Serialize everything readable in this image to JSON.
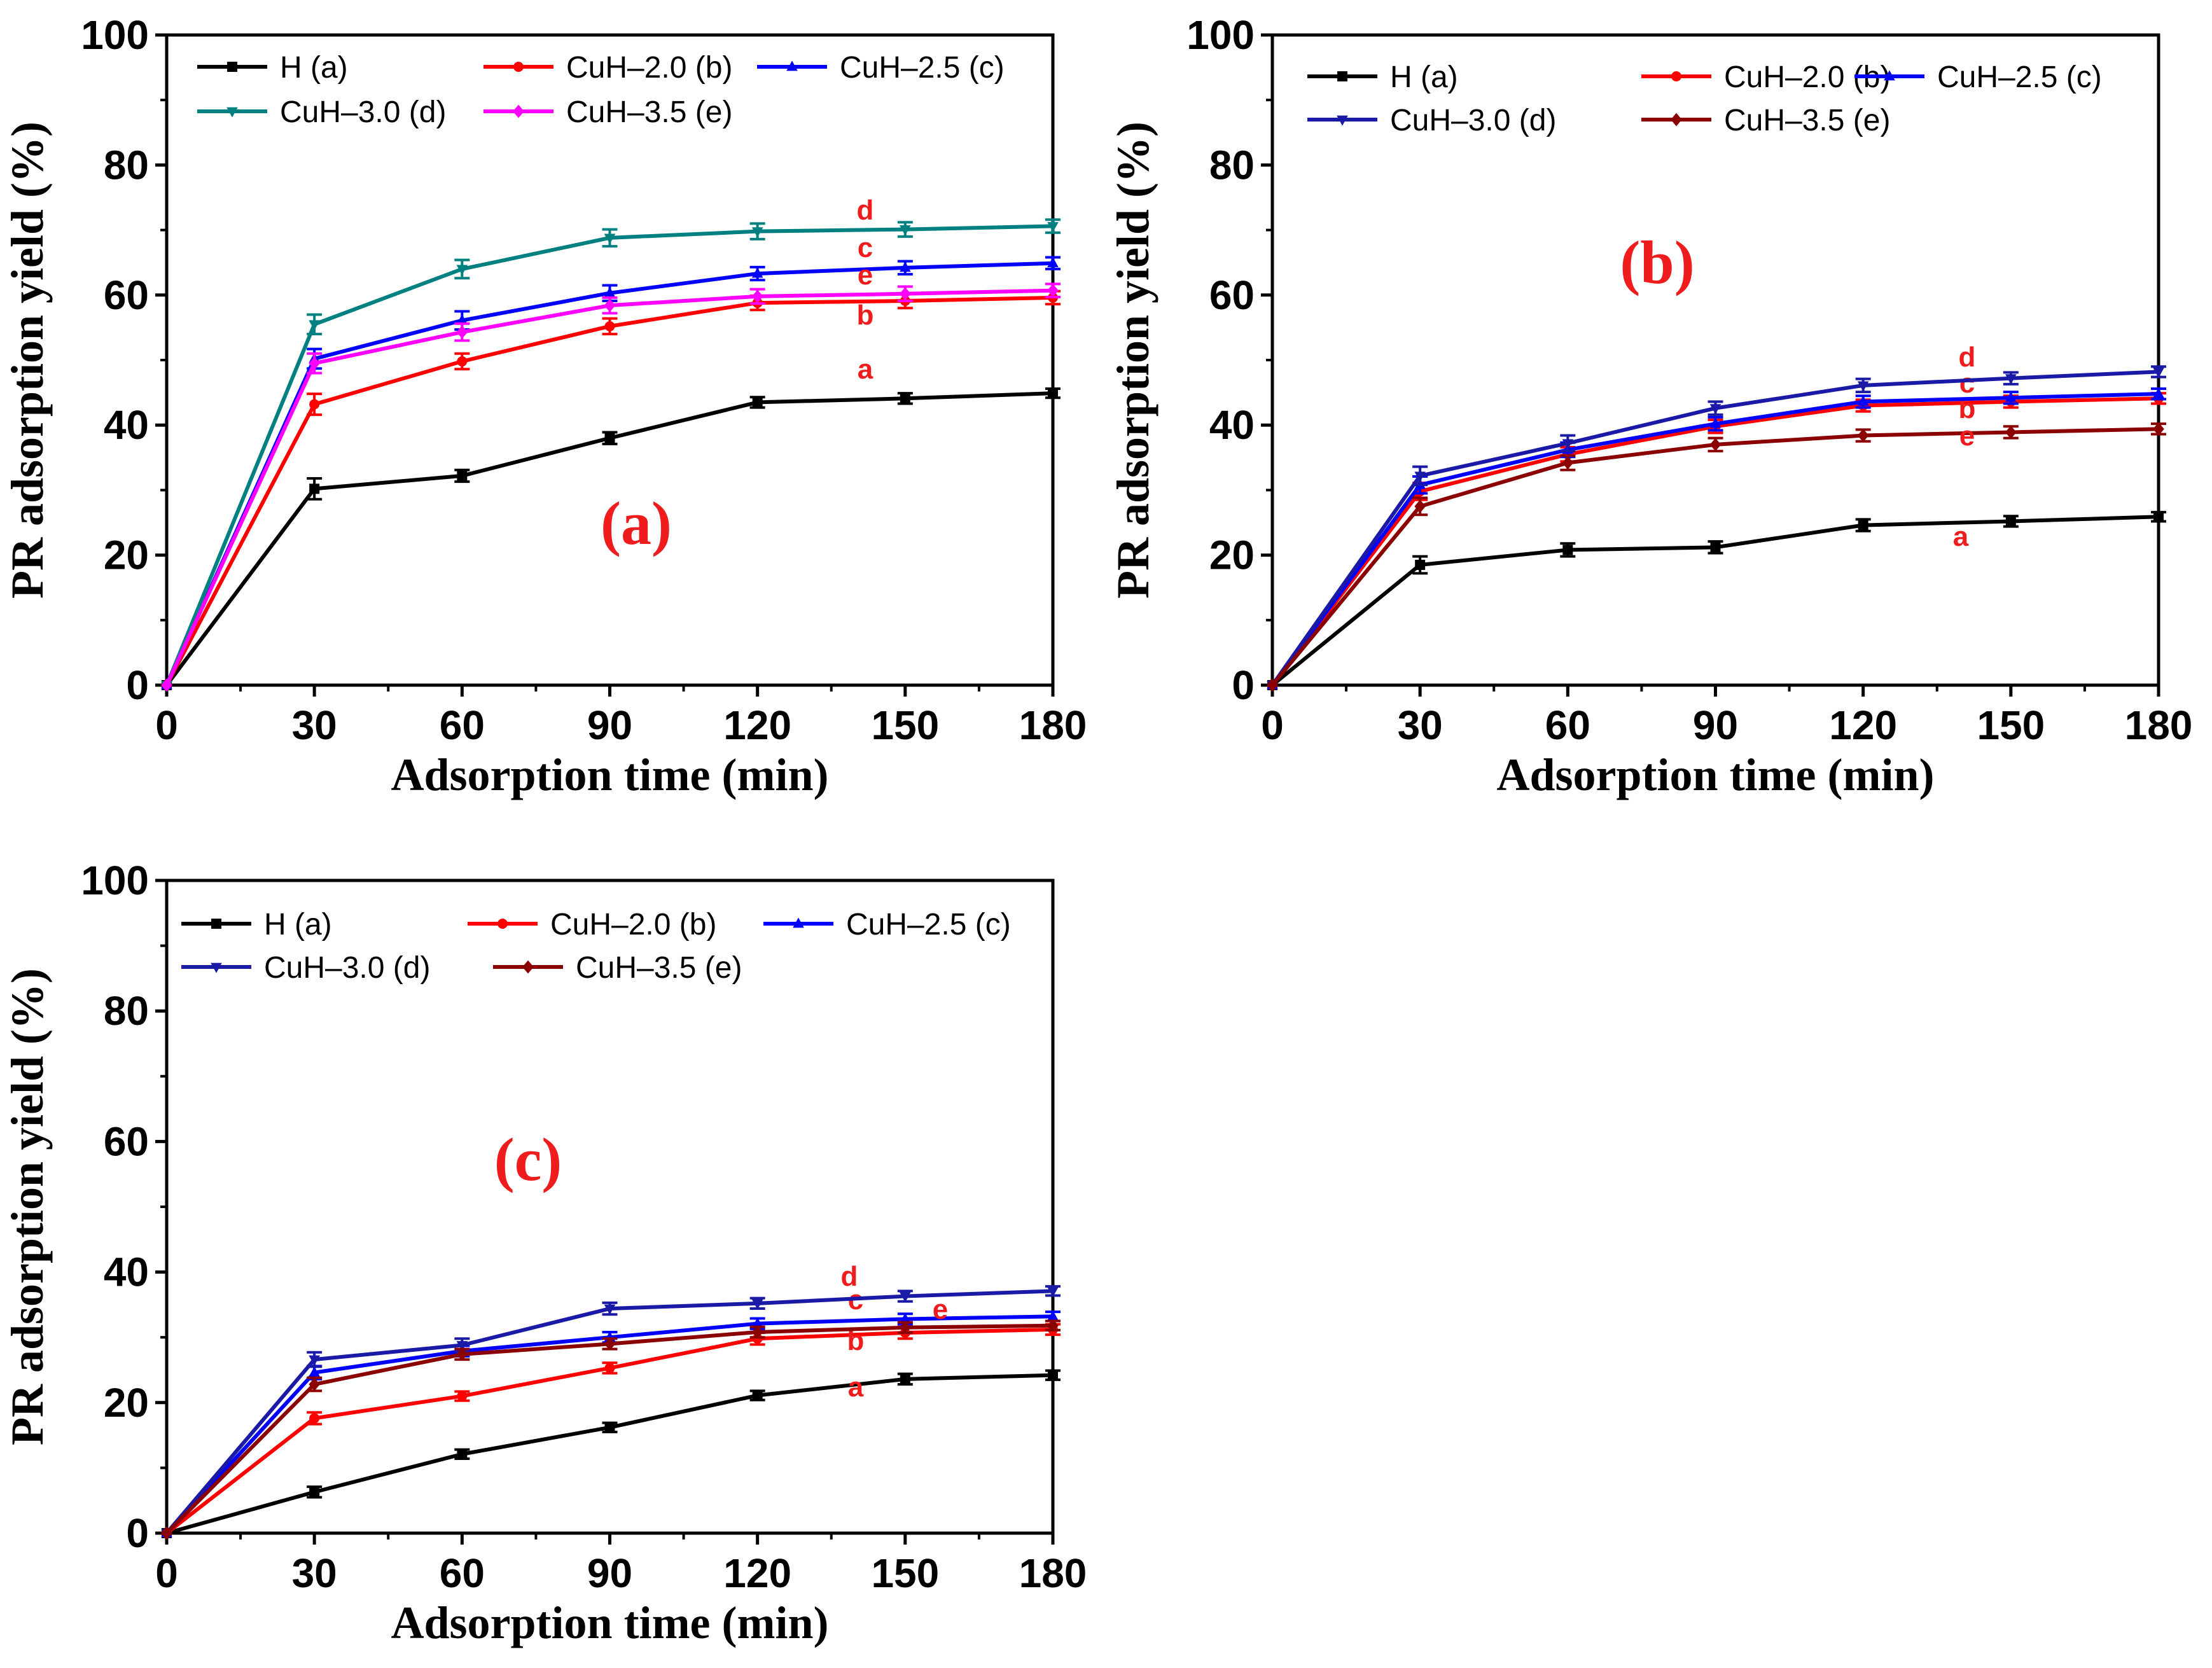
{
  "chart_data": [
    {
      "type": "line",
      "panel_label": "(a)",
      "xlabel": "Adsorption time (min)",
      "ylabel": "PR adsorption yield (%)",
      "x": [
        0,
        30,
        60,
        90,
        120,
        150,
        180
      ],
      "xticks": [
        "0",
        "30",
        "60",
        "90",
        "120",
        "150",
        "180"
      ],
      "yticks": [
        "0",
        "20",
        "40",
        "60",
        "80",
        "100"
      ],
      "xlim": [
        0,
        180
      ],
      "ylim": [
        0,
        100
      ],
      "grid": false,
      "legend_position": "top",
      "series": [
        {
          "name": "H (a)",
          "tag": "a",
          "color": "#000000",
          "marker": "square",
          "values": [
            0,
            30.2,
            32.2,
            38.0,
            43.5,
            44.1,
            44.9
          ],
          "errors": [
            0,
            1.6,
            0.9,
            0.9,
            0.8,
            0.8,
            0.7
          ]
        },
        {
          "name": "CuH–2.0 (b)",
          "tag": "b",
          "color": "#ff0000",
          "marker": "circle",
          "values": [
            0,
            43.2,
            49.8,
            55.2,
            58.8,
            59.1,
            59.6
          ],
          "errors": [
            0,
            1.6,
            1.2,
            1.2,
            1.1,
            1.1,
            1.0
          ]
        },
        {
          "name": "CuH–2.5 (c)",
          "tag": "c",
          "color": "#0000ff",
          "marker": "triangle-up",
          "values": [
            0,
            50.2,
            56.1,
            60.3,
            63.3,
            64.2,
            64.9
          ],
          "errors": [
            0,
            1.5,
            1.4,
            1.2,
            1.0,
            1.0,
            0.9
          ]
        },
        {
          "name": "CuH–3.0 (d)",
          "tag": "d",
          "color": "#008080",
          "marker": "triangle-down",
          "values": [
            0,
            55.5,
            64.0,
            68.8,
            69.8,
            70.1,
            70.6
          ],
          "errors": [
            0,
            1.5,
            1.4,
            1.3,
            1.2,
            1.1,
            1.0
          ]
        },
        {
          "name": "CuH–3.5 (e)",
          "tag": "e",
          "color": "#ff00ff",
          "marker": "diamond",
          "values": [
            0,
            49.5,
            54.3,
            58.4,
            59.8,
            60.2,
            60.7
          ],
          "errors": [
            0,
            1.5,
            1.3,
            1.2,
            1.1,
            1.1,
            1.0
          ]
        }
      ]
    },
    {
      "type": "line",
      "panel_label": "(b)",
      "xlabel": "Adsorption time (min)",
      "ylabel": "PR adsorption yield (%)",
      "x": [
        0,
        30,
        60,
        90,
        120,
        150,
        180
      ],
      "xticks": [
        "0",
        "30",
        "60",
        "90",
        "120",
        "150",
        "180"
      ],
      "yticks": [
        "0",
        "20",
        "40",
        "60",
        "80",
        "100"
      ],
      "xlim": [
        0,
        180
      ],
      "ylim": [
        0,
        100
      ],
      "grid": false,
      "legend_position": "top",
      "series": [
        {
          "name": "H (a)",
          "tag": "a",
          "color": "#000000",
          "marker": "square",
          "values": [
            0,
            18.5,
            20.8,
            21.2,
            24.6,
            25.2,
            25.9
          ],
          "errors": [
            0,
            1.3,
            1.0,
            0.9,
            0.9,
            0.8,
            0.7
          ]
        },
        {
          "name": "CuH–2.0 (b)",
          "tag": "b",
          "color": "#ff0000",
          "marker": "circle",
          "values": [
            0,
            29.8,
            35.5,
            39.8,
            43.0,
            43.6,
            44.1
          ],
          "errors": [
            0,
            1.3,
            1.1,
            1.0,
            0.9,
            0.9,
            0.8
          ]
        },
        {
          "name": "CuH–2.5 (c)",
          "tag": "c",
          "color": "#0000ff",
          "marker": "triangle-up",
          "values": [
            0,
            30.8,
            36.2,
            40.2,
            43.6,
            44.2,
            44.8
          ],
          "errors": [
            0,
            1.3,
            1.1,
            1.0,
            0.9,
            0.9,
            0.8
          ]
        },
        {
          "name": "CuH–3.0 (d)",
          "tag": "d",
          "color": "#1a1aa6",
          "marker": "triangle-down",
          "values": [
            0,
            32.2,
            37.2,
            42.6,
            46.1,
            47.2,
            48.2
          ],
          "errors": [
            0,
            1.4,
            1.2,
            1.0,
            1.0,
            0.9,
            0.8
          ]
        },
        {
          "name": "CuH–3.5 (e)",
          "tag": "e",
          "color": "#8b0000",
          "marker": "diamond",
          "values": [
            0,
            27.5,
            34.2,
            37.0,
            38.4,
            38.9,
            39.4
          ],
          "errors": [
            0,
            1.3,
            1.1,
            1.0,
            0.9,
            0.9,
            0.8
          ]
        }
      ]
    },
    {
      "type": "line",
      "panel_label": "(c)",
      "xlabel": "Adsorption time (min)",
      "ylabel": "PR adsorption yield (%)",
      "x": [
        0,
        30,
        60,
        90,
        120,
        150,
        180
      ],
      "xticks": [
        "0",
        "30",
        "60",
        "90",
        "120",
        "150",
        "180"
      ],
      "yticks": [
        "0",
        "20",
        "40",
        "60",
        "80",
        "100"
      ],
      "xlim": [
        0,
        180
      ],
      "ylim": [
        0,
        100
      ],
      "grid": false,
      "legend_position": "top",
      "series": [
        {
          "name": "H (a)",
          "tag": "a",
          "color": "#000000",
          "marker": "square",
          "values": [
            0,
            6.3,
            12.1,
            16.2,
            21.1,
            23.6,
            24.2
          ],
          "errors": [
            0,
            0.8,
            0.7,
            0.7,
            0.7,
            0.8,
            0.7
          ]
        },
        {
          "name": "CuH–2.0 (b)",
          "tag": "b",
          "color": "#ff0000",
          "marker": "circle",
          "values": [
            0,
            17.6,
            21.0,
            25.3,
            29.8,
            30.7,
            31.2
          ],
          "errors": [
            0,
            0.9,
            0.7,
            0.8,
            0.9,
            0.9,
            0.8
          ]
        },
        {
          "name": "CuH–2.5 (c)",
          "tag": "c",
          "color": "#0000ff",
          "marker": "triangle-up",
          "values": [
            0,
            24.6,
            27.9,
            30.0,
            32.1,
            32.8,
            33.2
          ],
          "errors": [
            0,
            1.0,
            0.8,
            0.8,
            0.8,
            0.8,
            0.7
          ]
        },
        {
          "name": "CuH–3.0 (d)",
          "tag": "d",
          "color": "#1a1aa6",
          "marker": "triangle-down",
          "values": [
            0,
            26.6,
            28.8,
            34.4,
            35.2,
            36.3,
            37.1
          ],
          "errors": [
            0,
            1.1,
            1.0,
            0.9,
            0.8,
            0.8,
            0.7
          ]
        },
        {
          "name": "CuH–3.5 (e)",
          "tag": "e",
          "color": "#8b0000",
          "marker": "diamond",
          "values": [
            0,
            22.8,
            27.4,
            29.0,
            30.8,
            31.5,
            31.8
          ],
          "errors": [
            0,
            1.0,
            0.8,
            0.8,
            0.8,
            0.8,
            0.7
          ]
        }
      ]
    }
  ]
}
